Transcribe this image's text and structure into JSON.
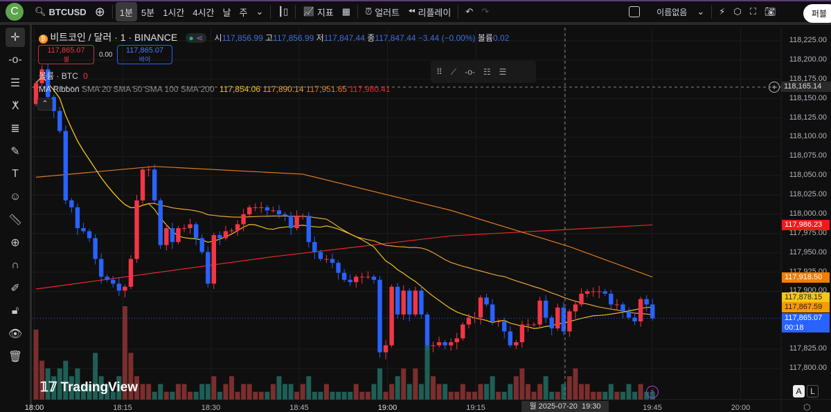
{
  "topbar": {
    "logo": "C",
    "symbol": "BTCUSD",
    "intervals": [
      "1분",
      "5분",
      "1시간",
      "4시간",
      "날",
      "주"
    ],
    "active_interval": "1분",
    "indicators": "지표",
    "alert": "얼러트",
    "replay": "리플레이",
    "layout_name": "이름없음",
    "publish": "퍼블"
  },
  "legend": {
    "title": "비트코인 / 달러 · 1 · BINANCE",
    "o_label": "시",
    "o": "117,856.99",
    "h_label": "고",
    "h": "117,856.99",
    "l_label": "저",
    "l": "117,847.44",
    "c_label": "종",
    "c": "117,847.44",
    "change": "−3.44 (−0.00%)",
    "vol_label": "볼륨",
    "vol": "0.02",
    "sell_price": "117,865.07",
    "sell_label": "셀",
    "spread": "0.00",
    "buy_price": "117,865.07",
    "buy_label": "바이",
    "volume_title": "볼륨 · BTC",
    "volume_value": "0",
    "ma_title": "MA Ribbon",
    "ma_params": "SMA 20 SMA 50 SMA 100 SMA 200",
    "ma_values": [
      "117,854.06",
      "117,890.14",
      "117,951.65",
      "117,980.41"
    ]
  },
  "colors": {
    "up": "#f23645",
    "down": "#2962ff",
    "vol_up": "#7a2e2e",
    "vol_down": "#1f5e55",
    "sma20": "#f0c419",
    "sma50": "#e8a23a",
    "sma100": "#e07b22",
    "sma200": "#e8282b",
    "accent": "#2962ff"
  },
  "price_axis": {
    "ticks": [
      118225,
      118200,
      118175,
      118150,
      118125,
      118100,
      118075,
      118050,
      118025,
      118000,
      117975,
      117950,
      117925,
      117900,
      117825,
      117800
    ],
    "crosshair_price": "118,165.14",
    "badges": [
      {
        "text": "117,986.23",
        "bg": "#f7171b",
        "fg": "#fff",
        "price": 117986.23
      },
      {
        "text": "117,918.50",
        "bg": "#f57c00",
        "fg": "#fff",
        "price": 117918.5
      },
      {
        "text": "117,878.15",
        "bg": "#f5c518",
        "fg": "#222",
        "price": 117878.15
      },
      {
        "text": "117,867.59",
        "bg": "#f59a00",
        "fg": "#222",
        "price": 117867.59
      },
      {
        "text": "117,865.07",
        "bg": "#2962ff",
        "fg": "#fff",
        "price": 117865.07,
        "countdown": "00:18"
      }
    ]
  },
  "time_axis": {
    "labels": [
      "18:00",
      "18:15",
      "18:30",
      "18:45",
      "19:00",
      "19:15",
      "19:30",
      "19:45",
      "20:00"
    ],
    "crosshair_label": "월 2025-07-20  19:30"
  },
  "watermark": "TradingView",
  "scale_buttons": [
    "A",
    "L"
  ],
  "chart_data": {
    "type": "candlestick",
    "first_open": 118143,
    "closes": [
      118170,
      118188,
      118152,
      118134,
      118108,
      118018,
      118009,
      117982,
      117978,
      117969,
      117942,
      117919,
      117915,
      117910,
      117901,
      117906,
      117942,
      118018,
      118058,
      118058,
      118018,
      117960,
      117982,
      117964,
      117982,
      117982,
      117987,
      117969,
      117951,
      117910,
      117973,
      117969,
      117978,
      117979,
      117987,
      118000,
      118009,
      118009,
      118009,
      118005,
      118005,
      118000,
      117998,
      117982,
      117998,
      117998,
      117964,
      117951,
      117942,
      117942,
      117937,
      117924,
      117915,
      117912,
      117919,
      117919,
      117919,
      117915,
      117821,
      117830,
      117906,
      117870,
      117901,
      117870,
      117901,
      117870,
      117830,
      117830,
      117834,
      117830,
      117834,
      117839,
      117857,
      117866,
      117866,
      117892,
      117883,
      117861,
      117861,
      117848,
      117830,
      117834,
      117857,
      117857,
      117857,
      117888,
      117866,
      117852,
      117879,
      117848,
      117874,
      117883,
      117897,
      117900,
      117900,
      117900,
      117897,
      117883,
      117883,
      117874,
      117866,
      117861,
      117890,
      117883,
      117865.07
    ],
    "volumes": [
      9,
      5,
      4,
      3,
      4,
      5,
      3,
      4,
      2,
      2,
      6,
      3,
      2,
      1,
      3,
      12,
      6,
      3,
      2,
      2,
      1,
      2,
      1,
      1,
      2,
      2,
      1,
      1,
      2,
      2,
      3,
      1,
      2,
      3,
      1,
      2,
      2,
      1,
      1,
      1,
      2,
      3,
      2,
      2,
      1,
      2,
      3,
      1,
      1,
      2,
      1,
      1,
      1,
      1,
      2,
      1,
      1,
      2,
      4,
      1,
      2,
      3,
      4,
      2,
      4,
      2,
      7,
      3,
      2,
      2,
      1,
      1,
      2,
      1,
      1,
      2,
      2,
      3,
      1,
      1,
      2,
      3,
      4,
      2,
      1,
      2,
      3,
      1,
      1,
      2,
      3,
      4,
      2,
      2,
      1,
      1,
      1,
      2,
      1,
      1,
      2,
      1,
      2,
      1,
      1
    ],
    "sma100_pts": [
      [
        0,
        118048
      ],
      [
        20,
        118062
      ],
      [
        45,
        118052
      ],
      [
        70,
        118005
      ],
      [
        90,
        117958
      ],
      [
        104,
        117918.5
      ]
    ],
    "sma200_pts": [
      [
        0,
        117903
      ],
      [
        40,
        117945
      ],
      [
        70,
        117972
      ],
      [
        104,
        117986.23
      ]
    ]
  }
}
